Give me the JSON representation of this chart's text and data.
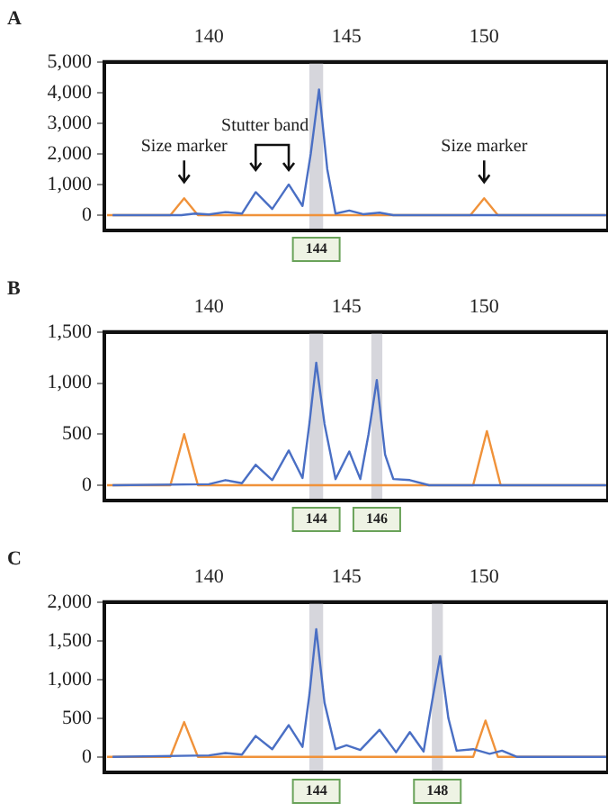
{
  "chart_data": [
    {
      "type": "line",
      "title": "A",
      "marker": "none",
      "xlim": [
        136.2,
        154.5
      ],
      "xticks": [
        140,
        145,
        150
      ],
      "ylim": [
        -500,
        5000
      ],
      "yticks": [
        {
          "value": 0,
          "label": "0"
        },
        {
          "value": 1000,
          "label": "1,000"
        },
        {
          "value": 2000,
          "label": "2,000"
        },
        {
          "value": 3000,
          "label": "3,000"
        },
        {
          "value": 4000,
          "label": "4,000"
        },
        {
          "value": 5000,
          "label": "5,000"
        }
      ],
      "series": [
        {
          "color": "#4a6fc4",
          "x": [
            136.5,
            139.0,
            139.5,
            140.0,
            140.6,
            141.2,
            141.7,
            142.3,
            142.9,
            143.4,
            143.7,
            144.0,
            144.3,
            144.6,
            145.1,
            145.6,
            146.2,
            146.7,
            150.0,
            154.5
          ],
          "values": [
            0,
            0,
            50,
            20,
            100,
            50,
            750,
            200,
            1000,
            300,
            2000,
            4100,
            1500,
            50,
            150,
            30,
            80,
            0,
            0,
            0
          ]
        },
        {
          "color": "#f0923a",
          "x": [
            136.3,
            138.6,
            139.1,
            139.6,
            149.5,
            150.0,
            150.5,
            154.5
          ],
          "values": [
            0,
            0,
            550,
            0,
            0,
            550,
            0,
            0
          ]
        }
      ],
      "bands": [
        {
          "axis": "x",
          "from": 143.65,
          "to": 144.15,
          "label": "144",
          "color": "#d6d6dc"
        }
      ],
      "annotations": [
        {
          "text": "Size marker",
          "x": 139.1,
          "y": 550
        },
        {
          "text": "Stutter band",
          "x": 142.9,
          "y": 1000
        },
        {
          "text": "Size marker",
          "x": 150.0,
          "y": 550
        }
      ]
    },
    {
      "type": "line",
      "title": "B",
      "marker": "none",
      "xlim": [
        136.2,
        154.5
      ],
      "xticks": [
        140,
        145,
        150
      ],
      "ylim": [
        -150,
        1500
      ],
      "yticks": [
        {
          "value": 0,
          "label": "0"
        },
        {
          "value": 500,
          "label": "500"
        },
        {
          "value": 1000,
          "label": "1,000"
        },
        {
          "value": 1500,
          "label": "1,500"
        }
      ],
      "series": [
        {
          "color": "#4a6fc4",
          "x": [
            136.5,
            140.0,
            140.6,
            141.2,
            141.7,
            142.3,
            142.9,
            143.4,
            143.65,
            143.9,
            144.2,
            144.6,
            145.1,
            145.5,
            145.8,
            146.1,
            146.4,
            146.7,
            147.3,
            148.0,
            154.5
          ],
          "values": [
            0,
            10,
            50,
            20,
            200,
            50,
            340,
            70,
            600,
            1200,
            600,
            60,
            330,
            60,
            500,
            1030,
            300,
            60,
            50,
            0,
            0
          ]
        },
        {
          "color": "#f0923a",
          "x": [
            136.3,
            138.6,
            139.1,
            139.6,
            149.6,
            150.1,
            150.6,
            154.5
          ],
          "values": [
            0,
            0,
            500,
            0,
            0,
            530,
            0,
            0
          ]
        }
      ],
      "bands": [
        {
          "axis": "x",
          "from": 143.65,
          "to": 144.15,
          "label": "144",
          "color": "#d6d6dc"
        },
        {
          "axis": "x",
          "from": 145.9,
          "to": 146.3,
          "label": "146",
          "color": "#d6d6dc"
        }
      ]
    },
    {
      "type": "line",
      "title": "C",
      "marker": "none",
      "xlim": [
        136.2,
        154.5
      ],
      "xticks": [
        140,
        145,
        150
      ],
      "ylim": [
        -200,
        2000
      ],
      "yticks": [
        {
          "value": 0,
          "label": "0"
        },
        {
          "value": 500,
          "label": "500"
        },
        {
          "value": 1000,
          "label": "1,000"
        },
        {
          "value": 1500,
          "label": "1,500"
        },
        {
          "value": 2000,
          "label": "2,000"
        }
      ],
      "series": [
        {
          "color": "#4a6fc4",
          "x": [
            136.5,
            140.0,
            140.6,
            141.2,
            141.7,
            142.3,
            142.9,
            143.4,
            143.65,
            143.9,
            144.2,
            144.6,
            145.0,
            145.5,
            146.2,
            146.8,
            147.3,
            147.8,
            148.1,
            148.4,
            148.7,
            149.0,
            149.6,
            150.2,
            150.65,
            151.2,
            154.5
          ],
          "values": [
            0,
            20,
            50,
            30,
            270,
            100,
            410,
            130,
            800,
            1650,
            700,
            100,
            150,
            90,
            350,
            60,
            320,
            70,
            700,
            1300,
            500,
            80,
            100,
            40,
            80,
            0,
            0
          ]
        },
        {
          "color": "#f0923a",
          "x": [
            136.3,
            138.6,
            139.1,
            139.6,
            149.6,
            150.05,
            150.5,
            154.5
          ],
          "values": [
            0,
            0,
            450,
            0,
            0,
            470,
            0,
            0
          ]
        }
      ],
      "bands": [
        {
          "axis": "x",
          "from": 143.65,
          "to": 144.15,
          "label": "144",
          "color": "#d6d6dc"
        },
        {
          "axis": "x",
          "from": 148.1,
          "to": 148.5,
          "label": "148",
          "color": "#d6d6dc"
        }
      ]
    }
  ]
}
